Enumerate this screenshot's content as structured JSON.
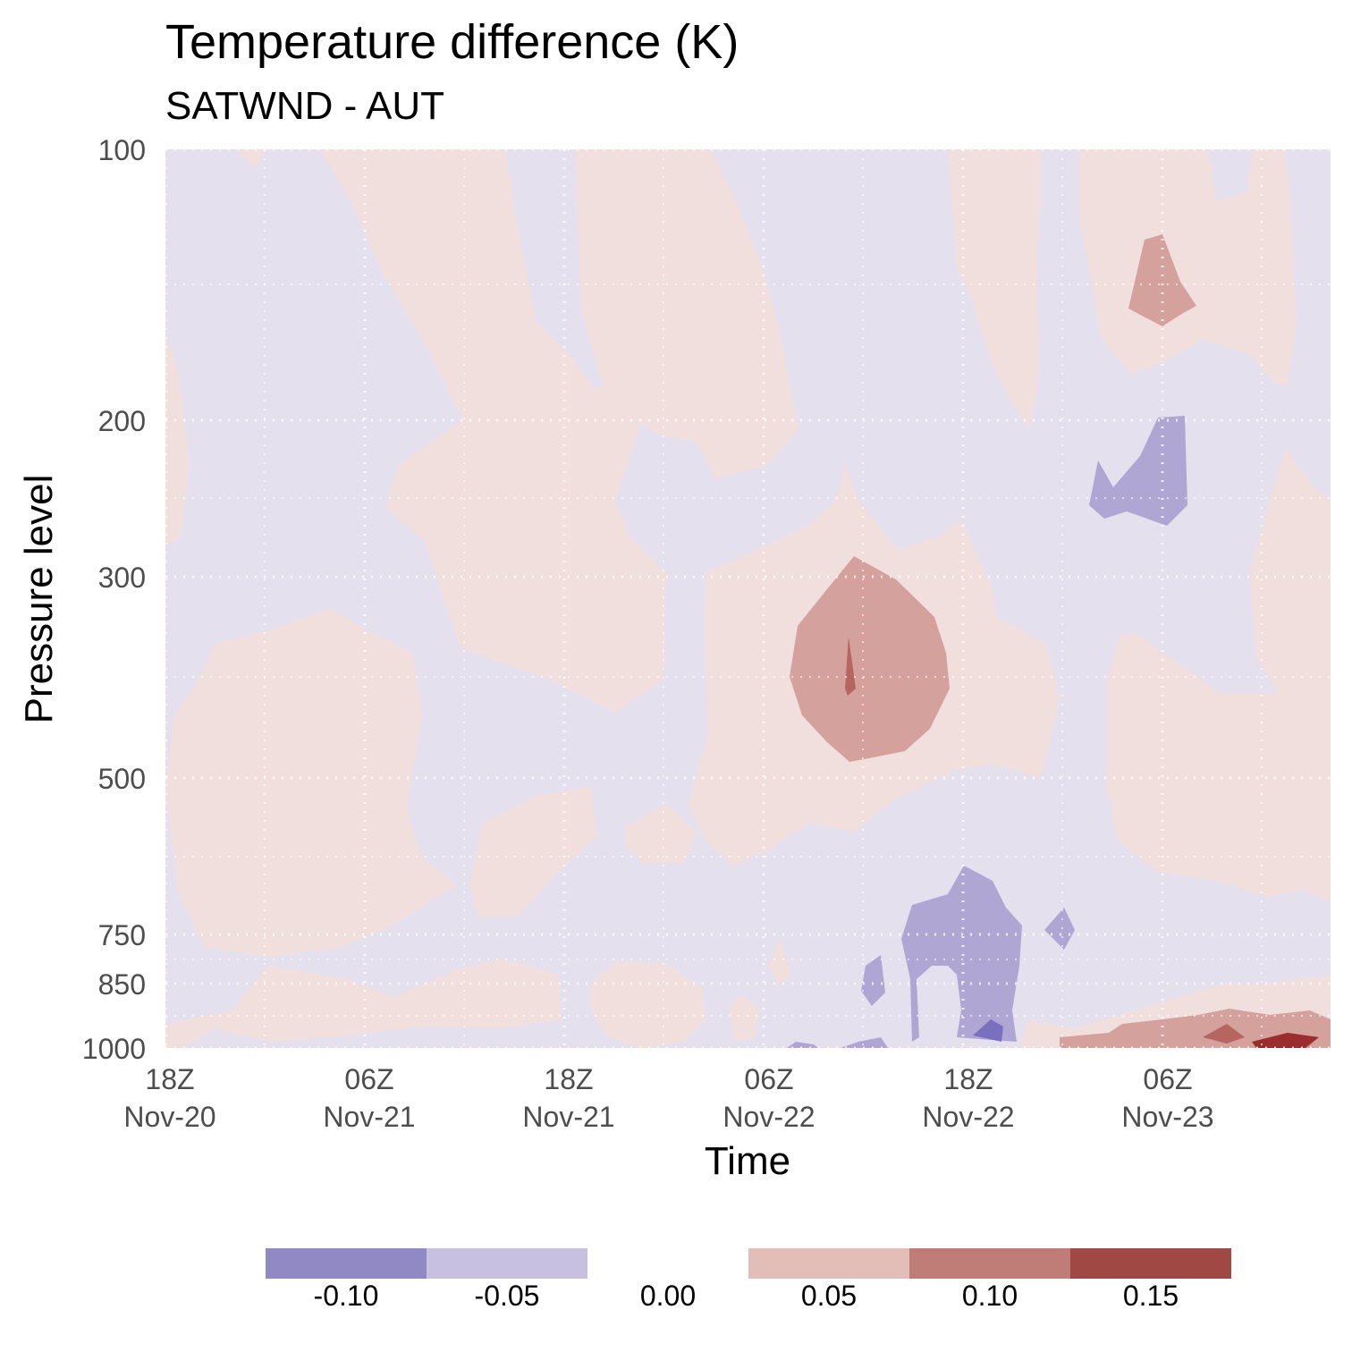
{
  "chart_data": {
    "type": "heatmap",
    "subtype": "filled-contour",
    "title": "Temperature difference (K)",
    "subtitle": "SATWND - AUT",
    "xlabel": "Time",
    "ylabel": "Pressure level",
    "y_scale": "reversed",
    "y_ticks": [
      "100",
      "200",
      "300",
      "500",
      "750",
      "850",
      "1000"
    ],
    "x_ticks": [
      {
        "line1": "18Z",
        "line2": "Nov-20"
      },
      {
        "line1": "06Z",
        "line2": "Nov-21"
      },
      {
        "line1": "18Z",
        "line2": "Nov-21"
      },
      {
        "line1": "06Z",
        "line2": "Nov-22"
      },
      {
        "line1": "18Z",
        "line2": "Nov-22"
      },
      {
        "line1": "06Z",
        "line2": "Nov-23"
      }
    ],
    "legend": {
      "placement": "bottom",
      "labels": [
        "-0.10",
        "-0.05",
        "0.00",
        "0.05",
        "0.10",
        "0.15"
      ],
      "colors": [
        "#9189c4",
        "#c8c0e0",
        "#ffffff",
        "#e3bdb8",
        "#c07c76",
        "#a04844"
      ]
    },
    "fill_colors": {
      "background": "#e4e0ee",
      "slight_warm": "#f1dfde",
      "warm": "#d4a19d",
      "warmer": "#b76561",
      "hot": "#9a2e2e",
      "cool": "#b0a6d4",
      "cold": "#7b70c0"
    },
    "grid": "dotted",
    "grid_color": "#ffffff"
  }
}
